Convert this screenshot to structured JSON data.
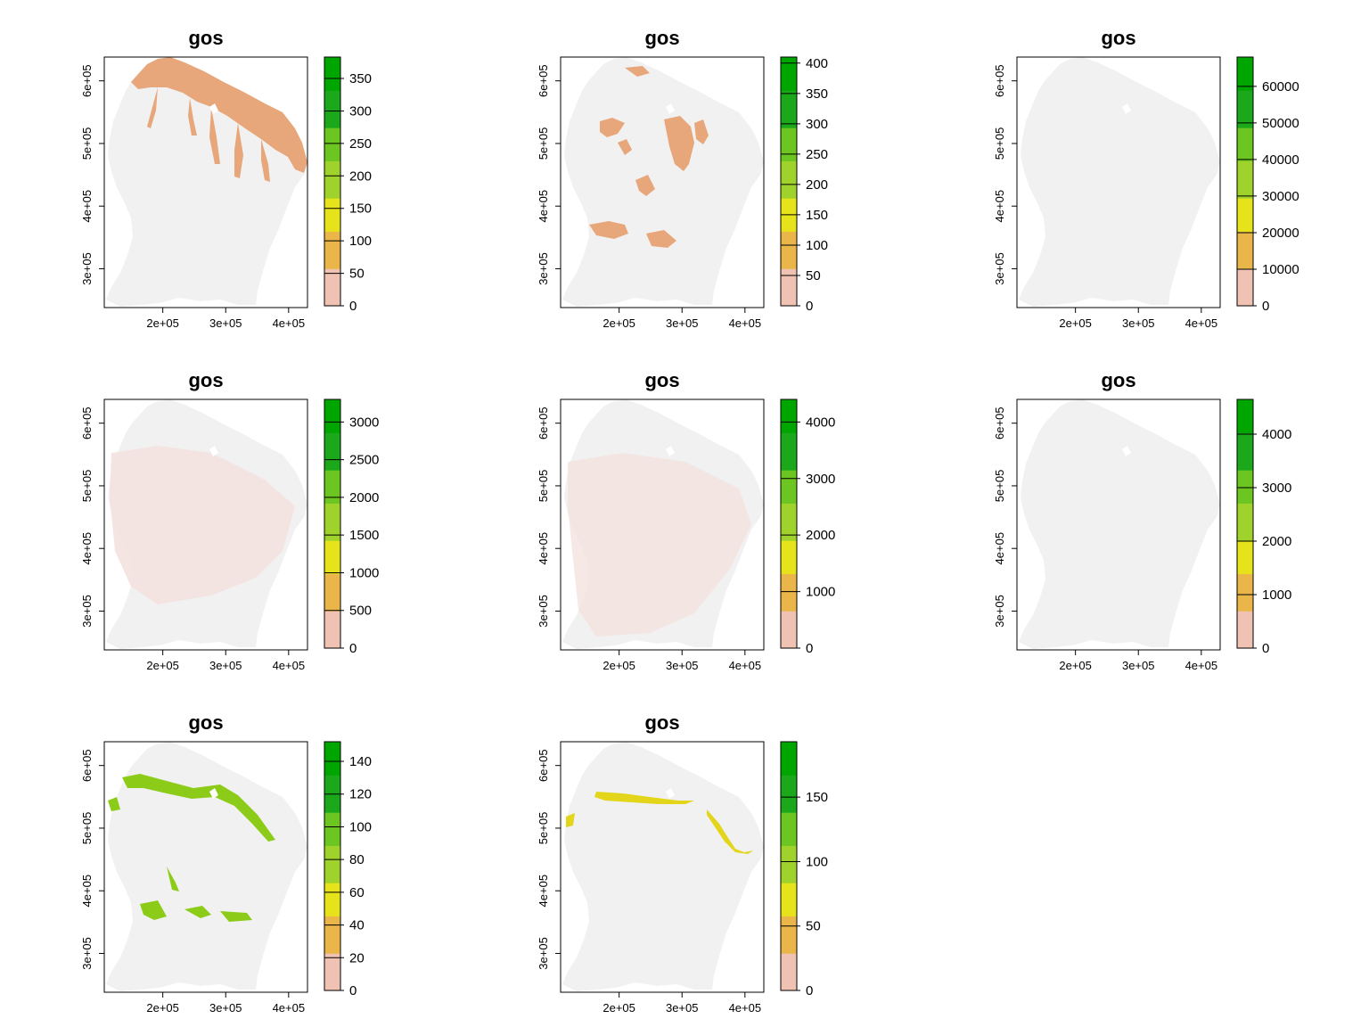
{
  "figure": {
    "panel_title": "gos",
    "x_ticks": [
      "2e+05",
      "3e+05",
      "4e+05"
    ],
    "y_ticks": [
      "3e+05",
      "4e+05",
      "5e+05",
      "6e+05"
    ],
    "colors": {
      "land": "#f1f1f1",
      "ramp": [
        "#f2f2f2",
        "#efc2b3",
        "#eab64a",
        "#e6e31b",
        "#9fd32c",
        "#6cc521",
        "#1ba81b",
        "#00a600"
      ],
      "overlay_tan": "#e7a77b",
      "overlay_green": "#8ccc18",
      "overlay_yellow": "#e2d51a"
    }
  },
  "panels": [
    {
      "title": "gos",
      "legend_max": 383,
      "legend_labels": [
        "0",
        "50",
        "100",
        "150",
        "200",
        "250",
        "300",
        "350"
      ],
      "legend_values": [
        0,
        50,
        100,
        150,
        200,
        250,
        300,
        350
      ],
      "overlay": "north-coast"
    },
    {
      "title": "gos",
      "legend_max": 410,
      "legend_labels": [
        "0",
        "50",
        "100",
        "150",
        "200",
        "250",
        "300",
        "350",
        "400"
      ],
      "legend_values": [
        0,
        50,
        100,
        150,
        200,
        250,
        300,
        350,
        400
      ],
      "overlay": "central-patches"
    },
    {
      "title": "gos",
      "legend_max": 68000,
      "legend_labels": [
        "0",
        "10000",
        "20000",
        "30000",
        "40000",
        "50000",
        "60000"
      ],
      "legend_values": [
        0,
        10000,
        20000,
        30000,
        40000,
        50000,
        60000
      ],
      "overlay": "none"
    },
    {
      "title": "gos",
      "legend_max": 3300,
      "legend_labels": [
        "0",
        "500",
        "1000",
        "1500",
        "2000",
        "2500",
        "3000"
      ],
      "legend_values": [
        0,
        500,
        1000,
        1500,
        2000,
        2500,
        3000
      ],
      "overlay": "faint-pink"
    },
    {
      "title": "gos",
      "legend_max": 4400,
      "legend_labels": [
        "0",
        "1000",
        "2000",
        "3000",
        "4000"
      ],
      "legend_values": [
        0,
        1000,
        2000,
        3000,
        4000
      ],
      "overlay": "faint-pink-2"
    },
    {
      "title": "gos",
      "legend_max": 4650,
      "legend_labels": [
        "0",
        "1000",
        "2000",
        "3000",
        "4000"
      ],
      "legend_values": [
        0,
        1000,
        2000,
        3000,
        4000
      ],
      "overlay": "none"
    },
    {
      "title": "gos",
      "legend_max": 152,
      "legend_labels": [
        "0",
        "20",
        "40",
        "60",
        "80",
        "100",
        "120",
        "140"
      ],
      "legend_values": [
        0,
        20,
        40,
        60,
        80,
        100,
        120,
        140
      ],
      "overlay": "green-bands"
    },
    {
      "title": "gos",
      "legend_max": 193,
      "legend_labels": [
        "0",
        "50",
        "100",
        "150"
      ],
      "legend_values": [
        0,
        50,
        100,
        150
      ],
      "overlay": "yellow-band"
    }
  ]
}
